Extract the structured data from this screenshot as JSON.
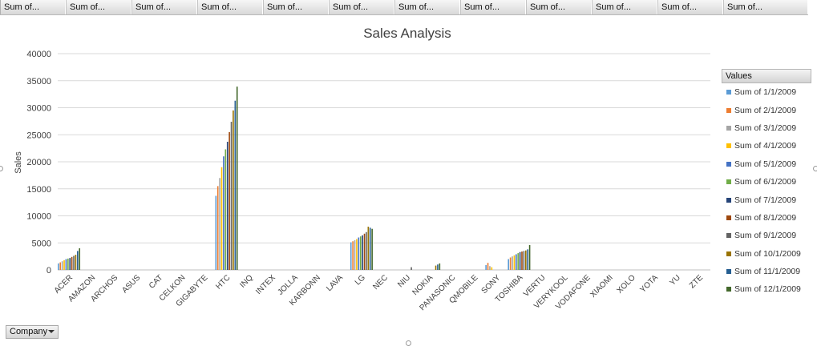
{
  "pivot_fields": [
    "Sum of...",
    "Sum of...",
    "Sum of...",
    "Sum of...",
    "Sum of...",
    "Sum of...",
    "Sum of...",
    "Sum of...",
    "Sum of...",
    "Sum of...",
    "Sum of...",
    "Sum of..."
  ],
  "axis_field_button": "Company",
  "legend": {
    "title": "Values"
  },
  "colors": [
    "#5b9bd5",
    "#ed7d31",
    "#a5a5a5",
    "#ffc000",
    "#4472c4",
    "#70ad47",
    "#264478",
    "#9e480e",
    "#636363",
    "#997300",
    "#255e91",
    "#43682b"
  ],
  "chart_data": {
    "type": "bar",
    "title": "Sales Analysis",
    "ylabel": "Sales",
    "xlabel": "",
    "ylim": [
      0,
      40000
    ],
    "yticks": [
      0,
      5000,
      10000,
      15000,
      20000,
      25000,
      30000,
      35000,
      40000
    ],
    "grid": true,
    "legend_position": "right",
    "categories": [
      "ACER",
      "AMAZON",
      "ARCHOS",
      "ASUS",
      "CAT",
      "CELKON",
      "GIGABYTE",
      "HTC",
      "INQ",
      "INTEX",
      "JOLLA",
      "KARBONN",
      "LAVA",
      "LG",
      "NEC",
      "NIU",
      "NOKIA",
      "PANASONIC",
      "QMOBILE",
      "SONY",
      "TOSHIBA",
      "VERTU",
      "VERYKOOL",
      "VODAFONE",
      "XIAOMI",
      "XOLO",
      "YOTA",
      "YU",
      "ZTE"
    ],
    "series": [
      {
        "name": "Sum of 1/1/2009",
        "values": [
          1200,
          0,
          0,
          0,
          0,
          0,
          0,
          13700,
          0,
          0,
          0,
          0,
          0,
          5100,
          0,
          0,
          0,
          0,
          0,
          900,
          2000,
          0,
          0,
          0,
          0,
          0,
          0,
          0,
          0
        ]
      },
      {
        "name": "Sum of 2/1/2009",
        "values": [
          1400,
          0,
          0,
          0,
          0,
          0,
          0,
          15500,
          0,
          0,
          0,
          0,
          0,
          5300,
          0,
          0,
          0,
          0,
          0,
          1300,
          2300,
          0,
          0,
          0,
          0,
          0,
          0,
          0,
          0
        ]
      },
      {
        "name": "Sum of 3/1/2009",
        "values": [
          1600,
          0,
          0,
          0,
          0,
          0,
          0,
          17000,
          0,
          0,
          0,
          0,
          0,
          5500,
          0,
          0,
          0,
          0,
          0,
          700,
          2500,
          0,
          0,
          0,
          0,
          0,
          0,
          0,
          0
        ]
      },
      {
        "name": "Sum of 4/1/2009",
        "values": [
          1800,
          0,
          0,
          0,
          0,
          0,
          0,
          19000,
          0,
          0,
          0,
          0,
          0,
          5700,
          0,
          0,
          0,
          0,
          0,
          500,
          2700,
          0,
          0,
          0,
          0,
          0,
          0,
          0,
          0
        ]
      },
      {
        "name": "Sum of 5/1/2009",
        "values": [
          2000,
          0,
          0,
          0,
          0,
          0,
          0,
          21000,
          0,
          0,
          0,
          0,
          0,
          6000,
          0,
          0,
          0,
          0,
          0,
          0,
          2900,
          0,
          0,
          0,
          0,
          0,
          0,
          0,
          0
        ]
      },
      {
        "name": "Sum of 6/1/2009",
        "values": [
          2100,
          0,
          0,
          0,
          0,
          0,
          0,
          22300,
          0,
          0,
          0,
          0,
          0,
          6200,
          0,
          0,
          0,
          0,
          0,
          0,
          3100,
          0,
          0,
          0,
          0,
          0,
          0,
          0,
          0
        ]
      },
      {
        "name": "Sum of 7/1/2009",
        "values": [
          2200,
          0,
          0,
          0,
          0,
          0,
          0,
          23700,
          0,
          0,
          0,
          0,
          0,
          6400,
          0,
          0,
          0,
          0,
          0,
          0,
          3300,
          0,
          0,
          0,
          0,
          0,
          0,
          0,
          0
        ]
      },
      {
        "name": "Sum of 8/1/2009",
        "values": [
          2400,
          0,
          0,
          0,
          0,
          0,
          0,
          25500,
          0,
          0,
          0,
          0,
          0,
          6700,
          0,
          0,
          0,
          0,
          0,
          0,
          3400,
          0,
          0,
          0,
          0,
          0,
          0,
          0,
          0
        ]
      },
      {
        "name": "Sum of 9/1/2009",
        "values": [
          2600,
          0,
          0,
          0,
          0,
          0,
          0,
          27400,
          0,
          0,
          0,
          0,
          0,
          7000,
          0,
          500,
          0,
          0,
          0,
          0,
          3500,
          0,
          0,
          0,
          0,
          0,
          0,
          0,
          0
        ]
      },
      {
        "name": "Sum of 10/1/2009",
        "values": [
          2800,
          0,
          0,
          0,
          0,
          0,
          0,
          29500,
          0,
          0,
          0,
          0,
          0,
          8000,
          0,
          0,
          800,
          0,
          0,
          0,
          3600,
          0,
          0,
          0,
          0,
          0,
          0,
          0,
          0
        ]
      },
      {
        "name": "Sum of 11/1/2009",
        "values": [
          3500,
          0,
          0,
          0,
          0,
          0,
          0,
          31300,
          0,
          0,
          0,
          0,
          0,
          7800,
          0,
          0,
          1000,
          0,
          0,
          0,
          3800,
          0,
          0,
          0,
          0,
          0,
          0,
          0,
          0
        ]
      },
      {
        "name": "Sum of 12/1/2009",
        "values": [
          4000,
          0,
          0,
          0,
          0,
          0,
          0,
          33900,
          0,
          0,
          0,
          0,
          0,
          7600,
          0,
          0,
          1200,
          0,
          0,
          0,
          4600,
          0,
          0,
          0,
          0,
          0,
          0,
          0,
          0
        ]
      }
    ]
  }
}
